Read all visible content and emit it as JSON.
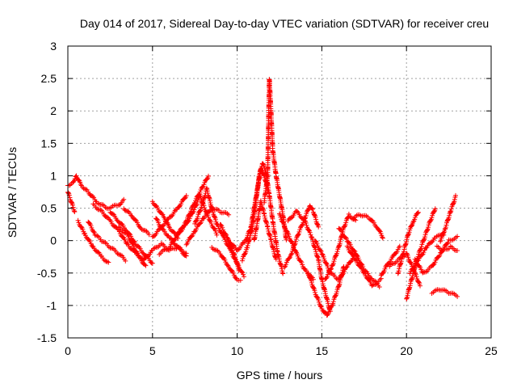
{
  "chart_data": {
    "type": "scatter",
    "title": "Day 014 of 2017, Sidereal Day-to-day VTEC variation (SDTVAR) for receiver creu",
    "xlabel": "GPS time / hours",
    "ylabel": "SDTVAR / TECUs",
    "xlim": [
      0,
      25
    ],
    "ylim": [
      -1.5,
      3
    ],
    "xticks": [
      0,
      5,
      10,
      15,
      20,
      25
    ],
    "yticks": [
      -1.5,
      -1,
      -0.5,
      0,
      0.5,
      1,
      1.5,
      2,
      2.5,
      3
    ],
    "grid": true,
    "marker": "+",
    "color": "#ff0000",
    "series": [
      {
        "name": "tracks",
        "tracks": [
          [
            [
              0.0,
              0.85
            ],
            [
              0.3,
              0.9
            ],
            [
              0.5,
              1.0
            ],
            [
              0.8,
              0.85
            ],
            [
              1.2,
              0.75
            ],
            [
              1.7,
              0.6
            ],
            [
              2.3,
              0.5
            ],
            [
              3.0,
              0.55
            ],
            [
              3.3,
              0.62
            ]
          ],
          [
            [
              0.0,
              0.75
            ],
            [
              0.2,
              0.6
            ],
            [
              0.4,
              0.45
            ]
          ],
          [
            [
              0.6,
              0.3
            ],
            [
              1.0,
              0.1
            ],
            [
              1.5,
              -0.1
            ],
            [
              2.0,
              -0.25
            ],
            [
              2.4,
              -0.35
            ]
          ],
          [
            [
              1.2,
              0.3
            ],
            [
              1.6,
              0.1
            ],
            [
              2.0,
              0.0
            ],
            [
              2.5,
              -0.1
            ],
            [
              3.0,
              -0.2
            ],
            [
              3.4,
              -0.3
            ]
          ],
          [
            [
              1.5,
              0.55
            ],
            [
              2.0,
              0.45
            ],
            [
              2.5,
              0.3
            ],
            [
              3.0,
              0.15
            ],
            [
              3.5,
              -0.05
            ],
            [
              4.0,
              -0.2
            ],
            [
              4.5,
              -0.3
            ]
          ],
          [
            [
              2.5,
              0.45
            ],
            [
              3.0,
              0.3
            ],
            [
              3.5,
              0.15
            ],
            [
              4.0,
              -0.05
            ],
            [
              4.5,
              -0.2
            ],
            [
              5.0,
              -0.35
            ]
          ],
          [
            [
              3.0,
              0.2
            ],
            [
              3.5,
              0.1
            ],
            [
              3.8,
              -0.05
            ],
            [
              4.2,
              -0.25
            ],
            [
              4.6,
              -0.4
            ]
          ],
          [
            [
              3.3,
              0.5
            ],
            [
              3.8,
              0.38
            ],
            [
              4.3,
              0.2
            ],
            [
              4.8,
              0.1
            ]
          ],
          [
            [
              4.5,
              -0.3
            ],
            [
              5.0,
              -0.15
            ],
            [
              5.5,
              -0.05
            ],
            [
              6.0,
              -0.15
            ],
            [
              6.5,
              -0.1
            ],
            [
              7.0,
              -0.2
            ]
          ],
          [
            [
              5.0,
              0.6
            ],
            [
              5.3,
              0.5
            ],
            [
              5.7,
              0.35
            ],
            [
              6.0,
              0.2
            ],
            [
              6.5,
              0.05
            ]
          ],
          [
            [
              5.2,
              0.35
            ],
            [
              5.5,
              0.2
            ],
            [
              6.0,
              0.05
            ],
            [
              6.5,
              -0.1
            ],
            [
              7.0,
              -0.25
            ]
          ],
          [
            [
              5.0,
              0.05
            ],
            [
              5.5,
              0.2
            ],
            [
              6.0,
              0.35
            ],
            [
              6.5,
              0.5
            ],
            [
              7.0,
              0.7
            ]
          ],
          [
            [
              5.4,
              -0.2
            ],
            [
              6.0,
              -0.1
            ],
            [
              6.5,
              0.1
            ],
            [
              7.0,
              0.3
            ],
            [
              7.5,
              0.6
            ],
            [
              8.0,
              0.85
            ],
            [
              8.3,
              1.0
            ]
          ],
          [
            [
              6.5,
              0.1
            ],
            [
              7.0,
              0.25
            ],
            [
              7.5,
              0.5
            ],
            [
              7.8,
              0.7
            ],
            [
              8.0,
              0.55
            ],
            [
              8.4,
              0.3
            ],
            [
              8.8,
              0.1
            ]
          ],
          [
            [
              7.0,
              -0.05
            ],
            [
              7.5,
              0.15
            ],
            [
              8.0,
              0.35
            ],
            [
              8.5,
              0.5
            ],
            [
              9.0,
              0.45
            ],
            [
              9.5,
              0.4
            ]
          ],
          [
            [
              7.5,
              0.25
            ],
            [
              8.0,
              0.6
            ],
            [
              8.2,
              0.8
            ],
            [
              8.5,
              0.5
            ],
            [
              8.8,
              0.25
            ],
            [
              9.2,
              0.05
            ],
            [
              9.6,
              -0.15
            ],
            [
              10.0,
              -0.35
            ],
            [
              10.4,
              -0.55
            ]
          ],
          [
            [
              8.5,
              -0.1
            ],
            [
              9.0,
              -0.2
            ],
            [
              9.5,
              -0.4
            ],
            [
              10.0,
              -0.6
            ],
            [
              10.2,
              -0.6
            ]
          ],
          [
            [
              9.0,
              0.25
            ],
            [
              9.4,
              0.05
            ],
            [
              9.8,
              -0.2
            ],
            [
              10.1,
              -0.45
            ]
          ],
          [
            [
              9.5,
              0.0
            ],
            [
              10.0,
              -0.15
            ],
            [
              10.5,
              0.0
            ],
            [
              10.8,
              0.2
            ],
            [
              11.0,
              0.5
            ],
            [
              11.2,
              0.8
            ],
            [
              11.4,
              1.1
            ],
            [
              11.6,
              1.0
            ],
            [
              11.8,
              0.8
            ]
          ],
          [
            [
              10.3,
              -0.3
            ],
            [
              10.6,
              -0.1
            ],
            [
              10.9,
              0.2
            ],
            [
              11.1,
              0.6
            ],
            [
              11.3,
              1.0
            ],
            [
              11.5,
              1.2
            ],
            [
              11.7,
              1.05
            ],
            [
              11.9,
              0.7
            ],
            [
              12.1,
              0.3
            ],
            [
              12.4,
              -0.2
            ],
            [
              12.7,
              -0.5
            ]
          ],
          [
            [
              11.0,
              0.0
            ],
            [
              11.2,
              0.3
            ],
            [
              11.4,
              0.6
            ],
            [
              11.6,
              0.4
            ],
            [
              11.8,
              0.2
            ],
            [
              12.0,
              0.0
            ],
            [
              12.3,
              -0.3
            ]
          ],
          [
            [
              11.6,
              0.6
            ],
            [
              11.8,
              1.0
            ],
            [
              11.85,
              1.8
            ],
            [
              11.9,
              2.5
            ],
            [
              12.0,
              2.0
            ],
            [
              12.1,
              1.4
            ],
            [
              12.3,
              1.0
            ],
            [
              12.5,
              0.7
            ],
            [
              12.7,
              0.4
            ],
            [
              12.9,
              0.0
            ]
          ],
          [
            [
              12.5,
              0.4
            ],
            [
              13.0,
              0.1
            ],
            [
              13.5,
              -0.2
            ],
            [
              14.0,
              -0.45
            ],
            [
              14.5,
              -0.6
            ]
          ],
          [
            [
              12.8,
              -0.4
            ],
            [
              13.2,
              -0.2
            ],
            [
              13.6,
              0.1
            ],
            [
              14.0,
              0.35
            ],
            [
              14.3,
              0.55
            ],
            [
              14.5,
              0.45
            ],
            [
              14.8,
              0.2
            ]
          ],
          [
            [
              13.0,
              0.3
            ],
            [
              13.5,
              0.45
            ],
            [
              14.0,
              0.3
            ],
            [
              14.4,
              0.05
            ],
            [
              14.8,
              -0.3
            ],
            [
              15.0,
              -0.6
            ],
            [
              15.3,
              -0.9
            ],
            [
              15.5,
              -1.1
            ]
          ],
          [
            [
              14.2,
              -0.5
            ],
            [
              14.6,
              -0.8
            ],
            [
              15.0,
              -1.05
            ],
            [
              15.3,
              -1.15
            ],
            [
              15.6,
              -1.0
            ],
            [
              16.0,
              -0.7
            ],
            [
              16.3,
              -0.4
            ]
          ],
          [
            [
              14.6,
              0.0
            ],
            [
              15.0,
              -0.2
            ],
            [
              15.5,
              -0.5
            ],
            [
              16.0,
              -0.6
            ],
            [
              16.5,
              -0.4
            ],
            [
              17.0,
              -0.2
            ]
          ],
          [
            [
              15.2,
              -0.6
            ],
            [
              15.6,
              -0.4
            ],
            [
              16.0,
              -0.1
            ],
            [
              16.3,
              0.2
            ],
            [
              16.6,
              0.4
            ],
            [
              17.0,
              0.3
            ]
          ],
          [
            [
              16.0,
              0.2
            ],
            [
              16.5,
              0.0
            ],
            [
              17.0,
              -0.2
            ],
            [
              17.5,
              -0.45
            ],
            [
              18.0,
              -0.6
            ],
            [
              18.4,
              -0.7
            ]
          ],
          [
            [
              16.5,
              -0.1
            ],
            [
              17.0,
              -0.3
            ],
            [
              17.5,
              -0.5
            ],
            [
              18.0,
              -0.7
            ],
            [
              18.5,
              -0.6
            ]
          ],
          [
            [
              16.8,
              0.35
            ],
            [
              17.3,
              0.4
            ],
            [
              17.8,
              0.35
            ],
            [
              18.3,
              0.2
            ],
            [
              18.6,
              0.05
            ]
          ],
          [
            [
              18.5,
              -0.55
            ],
            [
              18.8,
              -0.4
            ],
            [
              19.2,
              -0.25
            ],
            [
              19.6,
              -0.1
            ]
          ],
          [
            [
              19.5,
              -0.5
            ],
            [
              19.8,
              -0.2
            ],
            [
              20.1,
              0.1
            ],
            [
              20.4,
              0.3
            ],
            [
              20.7,
              0.45
            ]
          ],
          [
            [
              19.0,
              -0.4
            ],
            [
              19.5,
              -0.3
            ],
            [
              20.0,
              -0.2
            ],
            [
              20.5,
              -0.5
            ],
            [
              20.8,
              -0.7
            ]
          ],
          [
            [
              20.0,
              -0.9
            ],
            [
              20.3,
              -0.6
            ],
            [
              20.6,
              -0.3
            ],
            [
              21.0,
              0.0
            ],
            [
              21.4,
              0.3
            ],
            [
              21.7,
              0.5
            ]
          ],
          [
            [
              20.2,
              -0.5
            ],
            [
              20.7,
              -0.3
            ],
            [
              21.2,
              -0.1
            ],
            [
              21.7,
              0.05
            ],
            [
              22.2,
              0.1
            ]
          ],
          [
            [
              20.5,
              -0.3
            ],
            [
              21.0,
              -0.5
            ],
            [
              21.5,
              -0.4
            ],
            [
              22.0,
              -0.2
            ],
            [
              22.5,
              0.0
            ],
            [
              23.0,
              0.05
            ]
          ],
          [
            [
              21.5,
              -0.8
            ],
            [
              22.0,
              -0.75
            ],
            [
              22.5,
              -0.8
            ],
            [
              23.0,
              -0.85
            ]
          ],
          [
            [
              21.8,
              -0.1
            ],
            [
              22.2,
              -0.15
            ],
            [
              22.6,
              -0.1
            ],
            [
              23.0,
              -0.15
            ]
          ],
          [
            [
              22.0,
              0.0
            ],
            [
              22.3,
              0.2
            ],
            [
              22.6,
              0.45
            ],
            [
              22.9,
              0.68
            ]
          ]
        ]
      }
    ]
  }
}
